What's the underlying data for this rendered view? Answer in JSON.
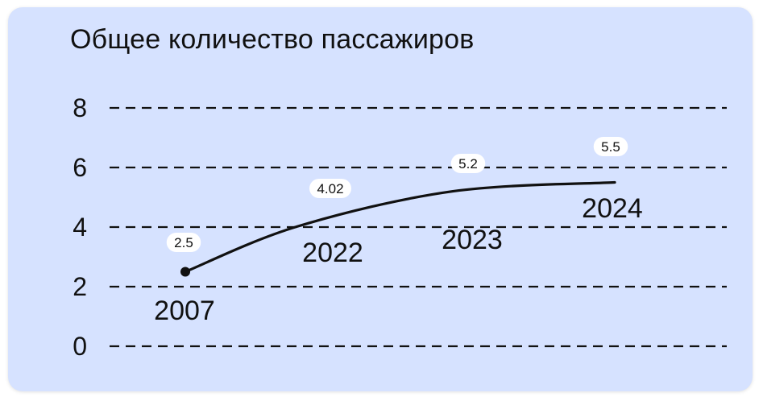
{
  "colors": {
    "background": "#d6e2ff",
    "line": "#111111",
    "label_bg": "#ffffff"
  },
  "chart_data": {
    "type": "line",
    "title": "Общее количество пассажиров",
    "categories": [
      "2007",
      "2022",
      "2023",
      "2024"
    ],
    "series": [
      {
        "values": [
          2.5,
          4.02,
          5.2,
          5.5
        ]
      }
    ],
    "data_labels": [
      "2.5",
      "4.02",
      "5.2",
      "5.5"
    ],
    "y_ticks": [
      "0",
      "2",
      "4",
      "6",
      "8"
    ],
    "ylim": [
      0,
      8
    ],
    "grid": true,
    "grid_style": "dashed"
  }
}
